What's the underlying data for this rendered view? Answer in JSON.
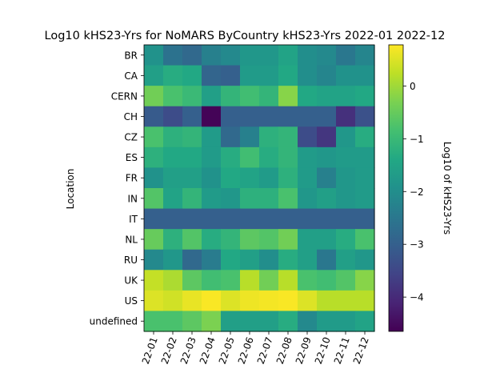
{
  "chart_data": {
    "type": "heatmap",
    "title": "Log10 kHS23-Yrs for NoMARS ByCountry kHS23-Yrs 2022-01 2022-12",
    "xlabel": "",
    "ylabel": "Location",
    "colorbar_label": "Log10 of kHS23-Yrs",
    "colormap": "viridis",
    "vmin": -4.65,
    "vmax": 0.78,
    "colorbar_ticks": [
      0,
      -1,
      -2,
      -3,
      -4
    ],
    "colorbar_tick_labels": [
      "0",
      "−1",
      "−2",
      "−3",
      "−4"
    ],
    "x_categories": [
      "22-01",
      "22-02",
      "22-03",
      "22-04",
      "22-05",
      "22-06",
      "22-07",
      "22-08",
      "22-09",
      "22-10",
      "22-11",
      "22-12"
    ],
    "y_categories": [
      "BR",
      "CA",
      "CERN",
      "CH",
      "CZ",
      "ES",
      "FR",
      "IN",
      "IT",
      "NL",
      "RU",
      "UK",
      "US",
      "undefined"
    ],
    "values": [
      [
        -1.9,
        -2.6,
        -2.8,
        -2.3,
        -2.1,
        -1.8,
        -1.8,
        -1.5,
        -2.0,
        -2.1,
        -2.5,
        -2.2
      ],
      [
        -1.6,
        -1.3,
        -1.4,
        -2.9,
        -3.0,
        -1.7,
        -1.7,
        -1.4,
        -2.0,
        -2.2,
        -1.9,
        -1.9
      ],
      [
        -0.4,
        -0.8,
        -1.0,
        -1.6,
        -1.1,
        -0.9,
        -1.1,
        -0.2,
        -1.4,
        -1.5,
        -1.5,
        -1.4
      ],
      [
        -3.1,
        -3.4,
        -3.0,
        -4.6,
        -3.0,
        -3.0,
        -3.0,
        -3.0,
        -3.0,
        -3.0,
        -3.9,
        -3.3
      ],
      [
        -0.8,
        -1.2,
        -1.1,
        -1.7,
        -2.8,
        -2.3,
        -1.2,
        -1.1,
        -3.4,
        -3.8,
        -1.8,
        -1.3
      ],
      [
        -1.2,
        -1.4,
        -1.4,
        -1.7,
        -1.3,
        -0.9,
        -1.3,
        -1.1,
        -1.7,
        -1.8,
        -1.7,
        -1.7
      ],
      [
        -1.9,
        -1.6,
        -1.6,
        -1.9,
        -1.4,
        -1.5,
        -1.7,
        -1.2,
        -1.7,
        -2.3,
        -1.8,
        -1.7
      ],
      [
        -0.7,
        -1.5,
        -1.1,
        -1.7,
        -1.8,
        -1.2,
        -1.2,
        -0.8,
        -1.8,
        -1.6,
        -1.8,
        -1.7
      ],
      [
        -3.0,
        -3.0,
        -3.0,
        -3.0,
        -3.0,
        -3.0,
        -3.0,
        -3.0,
        -3.0,
        -3.0,
        -3.0,
        -3.0
      ],
      [
        -0.5,
        -1.2,
        -0.7,
        -1.3,
        -1.1,
        -0.6,
        -0.7,
        -0.4,
        -1.6,
        -1.6,
        -1.3,
        -0.8
      ],
      [
        -2.1,
        -1.8,
        -2.8,
        -2.4,
        -1.4,
        -1.6,
        -2.0,
        -1.3,
        -1.6,
        -2.5,
        -1.6,
        -1.8
      ],
      [
        0.3,
        0.1,
        -0.6,
        -0.9,
        -0.8,
        0.2,
        -0.4,
        0.2,
        -0.8,
        -0.9,
        -0.7,
        -0.2
      ],
      [
        0.5,
        0.4,
        0.6,
        0.75,
        0.5,
        0.65,
        0.7,
        0.75,
        0.5,
        0.2,
        0.2,
        0.2
      ],
      [
        -0.8,
        -0.8,
        -0.6,
        -0.3,
        -1.6,
        -1.6,
        -1.6,
        -1.3,
        -2.1,
        -1.7,
        -1.7,
        -1.5
      ]
    ]
  }
}
